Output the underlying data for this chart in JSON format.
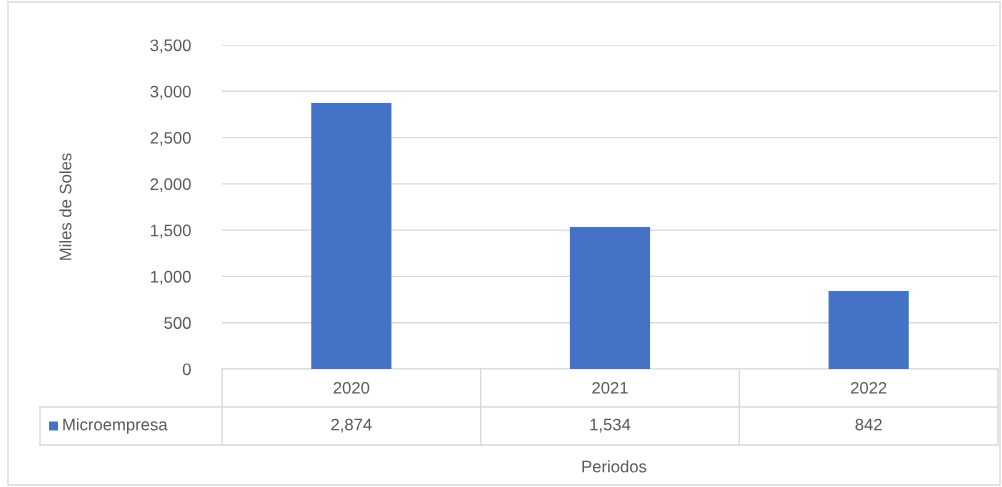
{
  "chart_data": {
    "type": "bar",
    "ylabel": "Miles de Soles",
    "xlabel": "Periodos",
    "categories": [
      "2020",
      "2021",
      "2022"
    ],
    "series": [
      {
        "name": "Microempresa",
        "color": "#4472c4",
        "values": [
          2874,
          1534,
          842
        ],
        "value_labels": [
          "2,874",
          "1,534",
          "842"
        ]
      }
    ],
    "ylim": [
      0,
      3500
    ],
    "yticks": [
      0,
      {
        "value": 500,
        "label": "500"
      },
      {
        "value": 1000,
        "label": "1,000"
      },
      {
        "value": 1500,
        "label": "1,500"
      },
      {
        "value": 2000,
        "label": "2,000"
      },
      {
        "value": 2500,
        "label": "2,500"
      },
      {
        "value": 3000,
        "label": "3,000"
      },
      {
        "value": 3500,
        "label": "3,500"
      }
    ],
    "grid": "y"
  }
}
